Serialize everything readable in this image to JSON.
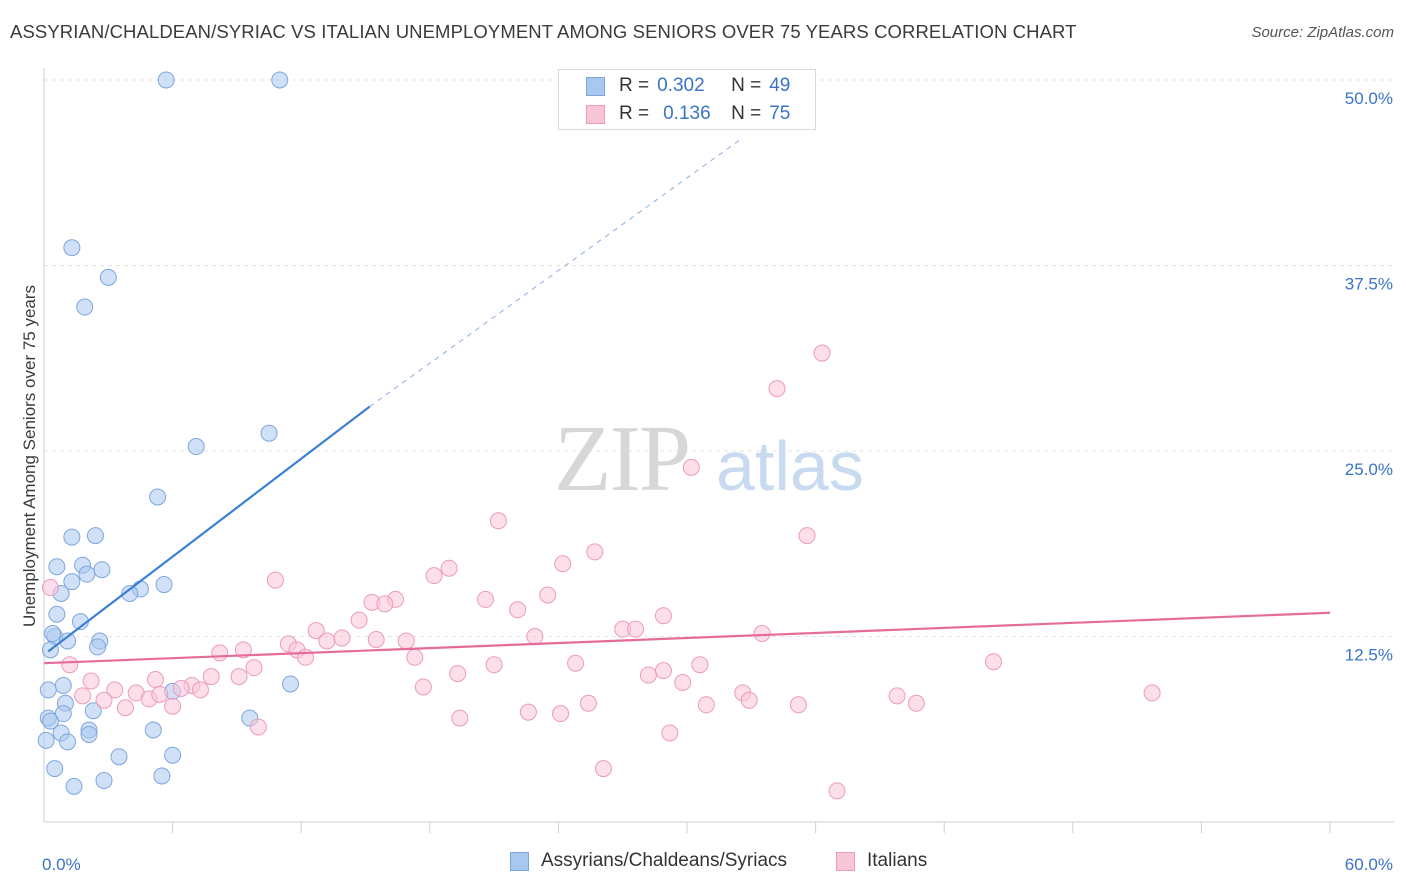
{
  "header": {
    "title": "ASSYRIAN/CHALDEAN/SYRIAC VS ITALIAN UNEMPLOYMENT AMONG SENIORS OVER 75 YEARS CORRELATION CHART",
    "source": "Source: ZipAtlas.com"
  },
  "watermark": {
    "zip": "ZIP",
    "atlas": "atlas"
  },
  "legend_top": [
    {
      "r_label": "R =",
      "r_value": "0.302",
      "n_label": "N =",
      "n_value": "49",
      "color": "#a9c8f0",
      "border": "#7ea6dd"
    },
    {
      "r_label": "R =",
      "r_value": "0.136",
      "n_label": "N =",
      "n_value": "75",
      "color": "#f9c5d8",
      "border": "#ec9bb9"
    }
  ],
  "legend_bottom": [
    {
      "label": "Assyrians/Chaldeans/Syriacs",
      "color": "#a9c8f0",
      "border": "#7ea6dd"
    },
    {
      "label": "Italians",
      "color": "#f9c5d8",
      "border": "#ec9bb9"
    }
  ],
  "chart_data": {
    "type": "scatter",
    "title": "ASSYRIAN/CHALDEAN/SYRIAC VS ITALIAN UNEMPLOYMENT AMONG SENIORS OVER 75 YEARS CORRELATION CHART",
    "xlabel": "",
    "ylabel": "Unemployment Among Seniors over 75 years",
    "xlim": [
      0,
      60
    ],
    "ylim": [
      0,
      52
    ],
    "x_tick_labels": [
      "0.0%",
      "60.0%"
    ],
    "y_ticks": [
      12.5,
      25.0,
      37.5,
      50.0
    ],
    "y_tick_labels": [
      "12.5%",
      "25.0%",
      "37.5%",
      "50.0%"
    ],
    "grid": true,
    "legend_position": "top-center",
    "series": [
      {
        "name": "Assyrians/Chaldeans/Syriacs",
        "color": "#a9c8f0",
        "stroke": "#7ea6dd",
        "line_color": "#3c7fd6",
        "trend": {
          "x_start": 0.2,
          "y_start": 11.5,
          "x_solid_end": 15.2,
          "y_solid_end": 28.0,
          "x_dash_end": 32.5,
          "y_dash_end": 46.0
        },
        "points": [
          {
            "x": 5.7,
            "y": 50.0
          },
          {
            "x": 11.0,
            "y": 50.0
          },
          {
            "x": 1.3,
            "y": 38.7
          },
          {
            "x": 3.0,
            "y": 36.7
          },
          {
            "x": 1.9,
            "y": 34.7
          },
          {
            "x": 10.5,
            "y": 26.2
          },
          {
            "x": 7.1,
            "y": 25.3
          },
          {
            "x": 5.3,
            "y": 21.9
          },
          {
            "x": 2.4,
            "y": 19.3
          },
          {
            "x": 1.3,
            "y": 19.2
          },
          {
            "x": 0.6,
            "y": 17.2
          },
          {
            "x": 1.8,
            "y": 17.3
          },
          {
            "x": 2.7,
            "y": 17.0
          },
          {
            "x": 2.0,
            "y": 16.7
          },
          {
            "x": 1.3,
            "y": 16.2
          },
          {
            "x": 5.6,
            "y": 16.0
          },
          {
            "x": 4.5,
            "y": 15.7
          },
          {
            "x": 4.0,
            "y": 15.4
          },
          {
            "x": 0.8,
            "y": 15.4
          },
          {
            "x": 0.6,
            "y": 14.0
          },
          {
            "x": 1.7,
            "y": 13.5
          },
          {
            "x": 0.5,
            "y": 12.5
          },
          {
            "x": 0.4,
            "y": 12.7
          },
          {
            "x": 1.1,
            "y": 12.2
          },
          {
            "x": 2.6,
            "y": 12.2
          },
          {
            "x": 2.5,
            "y": 11.8
          },
          {
            "x": 0.3,
            "y": 11.6
          },
          {
            "x": 0.9,
            "y": 9.2
          },
          {
            "x": 11.5,
            "y": 9.3
          },
          {
            "x": 0.2,
            "y": 8.9
          },
          {
            "x": 6.0,
            "y": 8.8
          },
          {
            "x": 1.0,
            "y": 8.0
          },
          {
            "x": 2.3,
            "y": 7.5
          },
          {
            "x": 0.9,
            "y": 7.3
          },
          {
            "x": 0.2,
            "y": 7.0
          },
          {
            "x": 9.6,
            "y": 7.0
          },
          {
            "x": 5.1,
            "y": 6.2
          },
          {
            "x": 2.1,
            "y": 6.2
          },
          {
            "x": 0.8,
            "y": 6.0
          },
          {
            "x": 2.1,
            "y": 5.9
          },
          {
            "x": 1.1,
            "y": 5.4
          },
          {
            "x": 0.1,
            "y": 5.5
          },
          {
            "x": 3.5,
            "y": 4.4
          },
          {
            "x": 6.0,
            "y": 4.5
          },
          {
            "x": 5.5,
            "y": 3.1
          },
          {
            "x": 2.8,
            "y": 2.8
          },
          {
            "x": 1.4,
            "y": 2.4
          },
          {
            "x": 0.5,
            "y": 3.6
          },
          {
            "x": 0.3,
            "y": 6.8
          }
        ]
      },
      {
        "name": "Italians",
        "color": "#f9c5d8",
        "stroke": "#ec9bb9",
        "line_color": "#e56c9a",
        "trend": {
          "x_start": 0.0,
          "y_start": 10.7,
          "x_end": 60.0,
          "y_end": 14.1
        },
        "points": [
          {
            "x": 36.3,
            "y": 31.6
          },
          {
            "x": 34.2,
            "y": 29.2
          },
          {
            "x": 30.2,
            "y": 23.9
          },
          {
            "x": 21.2,
            "y": 20.3
          },
          {
            "x": 35.6,
            "y": 19.3
          },
          {
            "x": 25.7,
            "y": 18.2
          },
          {
            "x": 24.2,
            "y": 17.4
          },
          {
            "x": 18.9,
            "y": 17.1
          },
          {
            "x": 18.2,
            "y": 16.6
          },
          {
            "x": 10.8,
            "y": 16.3
          },
          {
            "x": 0.3,
            "y": 15.8
          },
          {
            "x": 23.5,
            "y": 15.3
          },
          {
            "x": 20.6,
            "y": 15.0
          },
          {
            "x": 16.4,
            "y": 15.0
          },
          {
            "x": 15.3,
            "y": 14.8
          },
          {
            "x": 15.9,
            "y": 14.7
          },
          {
            "x": 22.1,
            "y": 14.3
          },
          {
            "x": 28.9,
            "y": 13.9
          },
          {
            "x": 14.7,
            "y": 13.6
          },
          {
            "x": 12.7,
            "y": 12.9
          },
          {
            "x": 27.0,
            "y": 13.0
          },
          {
            "x": 27.6,
            "y": 13.0
          },
          {
            "x": 33.5,
            "y": 12.7
          },
          {
            "x": 22.9,
            "y": 12.5
          },
          {
            "x": 13.9,
            "y": 12.4
          },
          {
            "x": 15.5,
            "y": 12.3
          },
          {
            "x": 16.9,
            "y": 12.2
          },
          {
            "x": 13.2,
            "y": 12.2
          },
          {
            "x": 11.4,
            "y": 12.0
          },
          {
            "x": 11.8,
            "y": 11.6
          },
          {
            "x": 9.3,
            "y": 11.6
          },
          {
            "x": 8.2,
            "y": 11.4
          },
          {
            "x": 12.2,
            "y": 11.1
          },
          {
            "x": 17.3,
            "y": 11.1
          },
          {
            "x": 1.2,
            "y": 10.6
          },
          {
            "x": 9.8,
            "y": 10.4
          },
          {
            "x": 24.8,
            "y": 10.7
          },
          {
            "x": 30.6,
            "y": 10.6
          },
          {
            "x": 44.3,
            "y": 10.8
          },
          {
            "x": 21.0,
            "y": 10.6
          },
          {
            "x": 19.3,
            "y": 10.0
          },
          {
            "x": 28.9,
            "y": 10.2
          },
          {
            "x": 28.2,
            "y": 9.9
          },
          {
            "x": 7.8,
            "y": 9.8
          },
          {
            "x": 9.1,
            "y": 9.8
          },
          {
            "x": 5.2,
            "y": 9.6
          },
          {
            "x": 2.2,
            "y": 9.5
          },
          {
            "x": 29.8,
            "y": 9.4
          },
          {
            "x": 6.9,
            "y": 9.2
          },
          {
            "x": 17.7,
            "y": 9.1
          },
          {
            "x": 6.4,
            "y": 9.0
          },
          {
            "x": 7.3,
            "y": 8.9
          },
          {
            "x": 3.3,
            "y": 8.9
          },
          {
            "x": 4.3,
            "y": 8.7
          },
          {
            "x": 1.8,
            "y": 8.5
          },
          {
            "x": 51.7,
            "y": 8.7
          },
          {
            "x": 32.6,
            "y": 8.7
          },
          {
            "x": 39.8,
            "y": 8.5
          },
          {
            "x": 4.9,
            "y": 8.3
          },
          {
            "x": 2.8,
            "y": 8.2
          },
          {
            "x": 32.9,
            "y": 8.2
          },
          {
            "x": 40.7,
            "y": 8.0
          },
          {
            "x": 35.2,
            "y": 7.9
          },
          {
            "x": 30.9,
            "y": 7.9
          },
          {
            "x": 25.4,
            "y": 8.0
          },
          {
            "x": 6.0,
            "y": 7.8
          },
          {
            "x": 3.8,
            "y": 7.7
          },
          {
            "x": 22.6,
            "y": 7.4
          },
          {
            "x": 24.1,
            "y": 7.3
          },
          {
            "x": 19.4,
            "y": 7.0
          },
          {
            "x": 10.0,
            "y": 6.4
          },
          {
            "x": 29.2,
            "y": 6.0
          },
          {
            "x": 26.1,
            "y": 3.6
          },
          {
            "x": 37.0,
            "y": 2.1
          },
          {
            "x": 5.4,
            "y": 8.6
          }
        ]
      }
    ]
  }
}
